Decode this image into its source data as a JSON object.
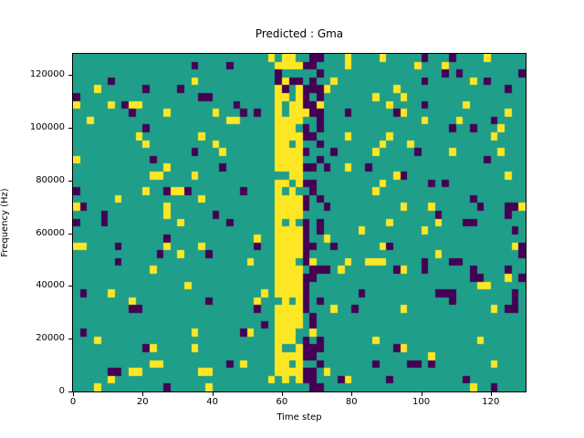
{
  "chart_data": {
    "type": "heatmap",
    "title": "Predicted : Gma",
    "xlabel": "Time step",
    "ylabel": "Frequency (Hz)",
    "xlim": [
      0,
      130
    ],
    "ylim": [
      0,
      128000
    ],
    "xticks": [
      0,
      20,
      40,
      60,
      80,
      100,
      120
    ],
    "yticks": [
      0,
      20000,
      40000,
      60000,
      80000,
      100000,
      120000
    ],
    "grid": {
      "cols": 65,
      "rows": 43,
      "x_units_per_col": 2,
      "y_units_per_row": 3000
    },
    "colors": {
      "background": "#1f9e89",
      "high": "#fde725",
      "low": "#440154"
    },
    "legend": "none",
    "features": {
      "description": "Teal background with sparse scattered yellow and dark-purple cells; solid yellow vertical band near time step 58-65 spanning ~3000-115000 Hz; dense dark-purple vertical band near time step 66-71; extra purple density at right edge",
      "yellow_band_cols": [
        29,
        32
      ],
      "purple_band_cols": [
        33,
        35
      ],
      "noise_yellow_p": 0.05,
      "noise_purple_p": 0.038,
      "right_edge_purple_cols": [
        62,
        64
      ],
      "seed": 42
    }
  }
}
